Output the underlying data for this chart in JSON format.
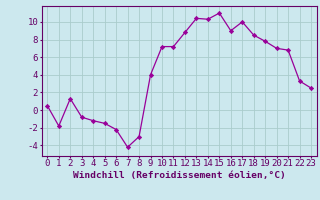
{
  "x": [
    0,
    1,
    2,
    3,
    4,
    5,
    6,
    7,
    8,
    9,
    10,
    11,
    12,
    13,
    14,
    15,
    16,
    17,
    18,
    19,
    20,
    21,
    22,
    23
  ],
  "y": [
    0.5,
    -1.8,
    1.3,
    -0.8,
    -1.2,
    -1.5,
    -2.2,
    -4.2,
    -3.0,
    4.0,
    7.2,
    7.2,
    8.8,
    10.4,
    10.3,
    11.0,
    9.0,
    10.0,
    8.5,
    7.8,
    7.0,
    6.8,
    3.3,
    2.5
  ],
  "line_color": "#990099",
  "marker": "D",
  "marker_size": 2.2,
  "bg_color": "#cce8ee",
  "grid_color": "#aacccc",
  "axis_color": "#660066",
  "xlabel": "Windchill (Refroidissement éolien,°C)",
  "ylabel": "",
  "title": "",
  "xlim": [
    -0.5,
    23.5
  ],
  "ylim": [
    -5.2,
    11.8
  ],
  "yticks": [
    -4,
    -2,
    0,
    2,
    4,
    6,
    8,
    10
  ],
  "xticks": [
    0,
    1,
    2,
    3,
    4,
    5,
    6,
    7,
    8,
    9,
    10,
    11,
    12,
    13,
    14,
    15,
    16,
    17,
    18,
    19,
    20,
    21,
    22,
    23
  ],
  "tick_fontsize": 6.5,
  "xlabel_fontsize": 6.8
}
